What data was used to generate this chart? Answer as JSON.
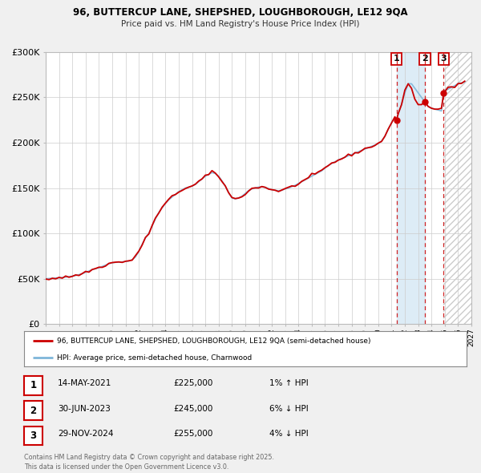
{
  "title_line1": "96, BUTTERCUP LANE, SHEPSHED, LOUGHBOROUGH, LE12 9QA",
  "title_line2": "Price paid vs. HM Land Registry's House Price Index (HPI)",
  "hpi_color": "#7eb6d9",
  "property_color": "#cc0000",
  "bg_color": "#f0f0f0",
  "plot_bg": "#ffffff",
  "ylim": [
    0,
    300000
  ],
  "xlim_start": 1995,
  "xlim_end": 2027,
  "yticks": [
    0,
    50000,
    100000,
    150000,
    200000,
    250000,
    300000
  ],
  "ytick_labels": [
    "£0",
    "£50K",
    "£100K",
    "£150K",
    "£200K",
    "£250K",
    "£300K"
  ],
  "xticks": [
    1995,
    1996,
    1997,
    1998,
    1999,
    2000,
    2001,
    2002,
    2003,
    2004,
    2005,
    2006,
    2007,
    2008,
    2009,
    2010,
    2011,
    2012,
    2013,
    2014,
    2015,
    2016,
    2017,
    2018,
    2019,
    2020,
    2021,
    2022,
    2023,
    2024,
    2025,
    2026,
    2027
  ],
  "sales": [
    {
      "date": 2021.37,
      "price": 225000,
      "label": "1"
    },
    {
      "date": 2023.5,
      "price": 245000,
      "label": "2"
    },
    {
      "date": 2024.92,
      "price": 255000,
      "label": "3"
    }
  ],
  "legend_property": "96, BUTTERCUP LANE, SHEPSHED, LOUGHBOROUGH, LE12 9QA (semi-detached house)",
  "legend_hpi": "HPI: Average price, semi-detached house, Charnwood",
  "table_rows": [
    {
      "num": "1",
      "date": "14-MAY-2021",
      "price": "£225,000",
      "note": "1% ↑ HPI"
    },
    {
      "num": "2",
      "date": "30-JUN-2023",
      "price": "£245,000",
      "note": "6% ↓ HPI"
    },
    {
      "num": "3",
      "date": "29-NOV-2024",
      "price": "£255,000",
      "note": "4% ↓ HPI"
    }
  ],
  "footer": "Contains HM Land Registry data © Crown copyright and database right 2025.\nThis data is licensed under the Open Government Licence v3.0.",
  "shade_between_1_2_start": 2021.37,
  "shade_between_1_2_end": 2023.5,
  "shade_future_start": 2024.92,
  "shade_future_end": 2027
}
